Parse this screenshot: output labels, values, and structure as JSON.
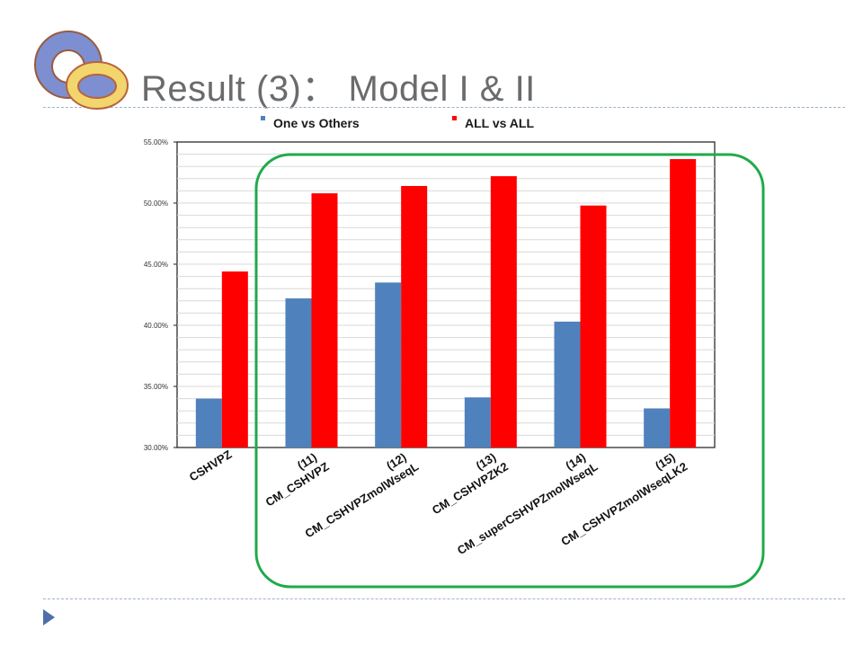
{
  "slide": {
    "title": "Result (3)： Model I & II",
    "logo_icon": "rings-logo-icon",
    "nav_icon": "triangle-bullet-icon"
  },
  "colors": {
    "series_one": "#4f81bd",
    "series_all": "#ff0000",
    "highlight_box": "#1faa4a",
    "title": "#6b6b6b"
  },
  "chart_data": {
    "type": "bar",
    "categories": [
      "CSHVPZ",
      "(11)\nCM_CSHVPZ",
      "(12)\nCM_CSHVPZmolWseqL",
      "(13)\nCM_CSHVPZK2",
      "(14)\nCM_superCSHVPZmolWseqL",
      "(15)\nCM_CSHVPZmolWseqLK2"
    ],
    "series": [
      {
        "name": "One vs Others",
        "values": [
          34.0,
          42.2,
          43.5,
          34.1,
          40.3,
          33.2
        ]
      },
      {
        "name": "ALL vs ALL",
        "values": [
          44.4,
          50.8,
          51.4,
          52.2,
          49.8,
          53.6
        ]
      }
    ],
    "yticks": [
      "30.00%",
      "35.00%",
      "40.00%",
      "45.00%",
      "50.00%",
      "55.00%"
    ],
    "ylim": [
      30,
      55
    ],
    "y_unit": "%",
    "grid": true,
    "legend_position": "top",
    "highlight": "rounded box around categories (11)-(15)"
  }
}
